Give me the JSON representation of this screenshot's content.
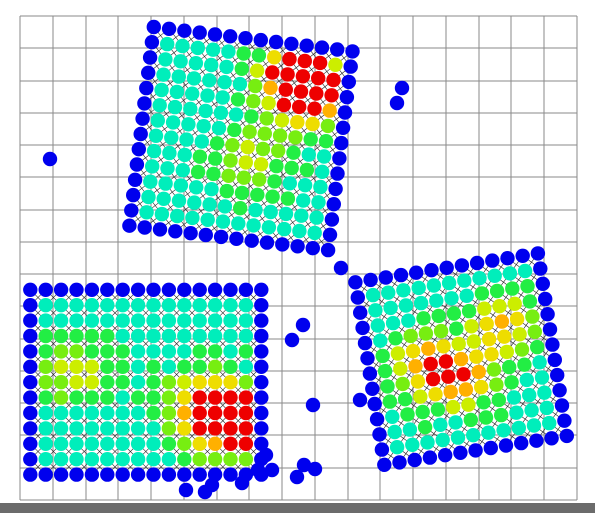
{
  "colors": {
    "background": "#ffffff",
    "grid": "#8a8a8a",
    "bottom_bar": "#6b6b6b",
    "boundary": "#0000ee",
    "scale": [
      "#0000ee",
      "#00a0ff",
      "#00e5ee",
      "#00eebb",
      "#22ee44",
      "#77ee11",
      "#ccee00",
      "#eedd00",
      "#ffb000",
      "#ee0000"
    ]
  },
  "grid": {
    "visible": true,
    "columns": 17,
    "rows": 15
  },
  "visualization": {
    "description_free": true,
    "patches": [
      {
        "id": "top-patch",
        "cols": 14,
        "rows": 14,
        "center": [
          0.405,
          0.27
        ],
        "rotation_deg": 7,
        "hot": [
          [
            0.74,
            0.16,
            0.9
          ],
          [
            0.55,
            0.6,
            0.35
          ],
          [
            0.85,
            0.25,
            0.55
          ]
        ]
      },
      {
        "id": "right-patch",
        "cols": 13,
        "rows": 13,
        "center": [
          0.775,
          0.7
        ],
        "rotation_deg": -9,
        "hot": [
          [
            0.5,
            0.6,
            0.55
          ],
          [
            0.3,
            0.5,
            0.62
          ],
          [
            0.75,
            0.35,
            0.55
          ]
        ]
      },
      {
        "id": "left-patch",
        "cols": 16,
        "rows": 13,
        "center": [
          0.245,
          0.745
        ],
        "rotation_deg": 0,
        "hot": [
          [
            0.88,
            0.72,
            1.0
          ],
          [
            0.75,
            0.62,
            0.55
          ],
          [
            0.18,
            0.45,
            0.35
          ]
        ]
      }
    ],
    "stray_nodes": 18
  }
}
